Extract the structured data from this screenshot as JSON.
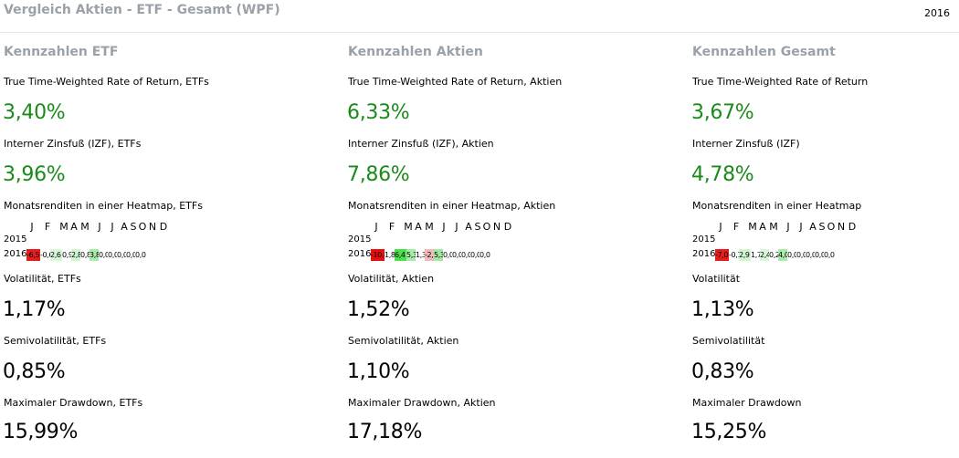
{
  "header": {
    "title": "Vergleich Aktien - ETF - Gesamt (WPF)",
    "year": "2016"
  },
  "month_letters": [
    "J",
    "F",
    "M",
    "A",
    "M",
    "J",
    "J",
    "A",
    "S",
    "O",
    "N",
    "D"
  ],
  "columns": [
    {
      "title": "Kennzahlen ETF",
      "ttwror_label": "True Time-Weighted Rate of Return, ETFs",
      "ttwror_value": "3,40%",
      "izf_label": "Interner Zinsfuß (IZF), ETFs",
      "izf_value": "3,96%",
      "heatmap_label": "Monatsrenditen in einer Heatmap, ETFs",
      "year_prev": "2015",
      "year_cur": "2016",
      "heatmap": [
        {
          "v": "-6,5",
          "c": "#e81c1c"
        },
        {
          "v": "-0,6",
          "c": "#ffffff"
        },
        {
          "v": "2,6",
          "c": "#d8f7d8"
        },
        {
          "v": "0,9",
          "c": "#ffffff"
        },
        {
          "v": "2,8",
          "c": "#d0f5d0"
        },
        {
          "v": "0,8",
          "c": "#ffffff"
        },
        {
          "v": "3,8",
          "c": "#a8eca8"
        },
        {
          "v": "0,0",
          "c": "#ffffff"
        },
        {
          "v": "0,0",
          "c": "#ffffff"
        },
        {
          "v": "0,0",
          "c": "#ffffff"
        },
        {
          "v": "0,0",
          "c": "#ffffff"
        },
        {
          "v": "0,0",
          "c": "#ffffff"
        }
      ],
      "vol_label": "Volatilität, ETFs",
      "vol_value": "1,17%",
      "semivol_label": "Semivolatilität, ETFs",
      "semivol_value": "0,85%",
      "mdd_label": "Maximaler Drawdown, ETFs",
      "mdd_value": "15,99%"
    },
    {
      "title": "Kennzahlen Aktien",
      "ttwror_label": "True Time-Weighted Rate of Return, Aktien",
      "ttwror_value": "6,33%",
      "izf_label": "Interner Zinsfuß (IZF), Aktien",
      "izf_value": "7,86%",
      "heatmap_label": "Monatsrenditen in einer Heatmap, Aktien",
      "year_prev": "2015",
      "year_cur": "2016",
      "heatmap": [
        {
          "v": "-10,4",
          "c": "#e80f0f"
        },
        {
          "v": "1,8",
          "c": "#ffffff"
        },
        {
          "v": "6,4",
          "c": "#4de04d"
        },
        {
          "v": "5,3",
          "c": "#a8eca8"
        },
        {
          "v": "1,3",
          "c": "#ffffff"
        },
        {
          "v": "-2,5",
          "c": "#f4b8b8"
        },
        {
          "v": "5,3",
          "c": "#a0eaa0"
        },
        {
          "v": "0,0",
          "c": "#ffffff"
        },
        {
          "v": "0,0",
          "c": "#ffffff"
        },
        {
          "v": "0,0",
          "c": "#ffffff"
        },
        {
          "v": "0,0",
          "c": "#ffffff"
        },
        {
          "v": "0,0",
          "c": "#ffffff"
        }
      ],
      "vol_label": "Volatilität, Aktien",
      "vol_value": "1,52%",
      "semivol_label": "Semivolatilität, Aktien",
      "semivol_value": "1,10%",
      "mdd_label": "Maximaler Drawdown, Aktien",
      "mdd_value": "17,18%"
    },
    {
      "title": "Kennzahlen Gesamt",
      "ttwror_label": "True Time-Weighted Rate of Return",
      "ttwror_value": "3,67%",
      "izf_label": "Interner Zinsfuß (IZF)",
      "izf_value": "4,78%",
      "heatmap_label": "Monatsrenditen in einer Heatmap",
      "year_prev": "2015",
      "year_cur": "2016",
      "heatmap": [
        {
          "v": "-7,0",
          "c": "#e81c1c"
        },
        {
          "v": "-0,1",
          "c": "#ffffff"
        },
        {
          "v": "2,9",
          "c": "#d0f5d0"
        },
        {
          "v": "1,7",
          "c": "#ffffff"
        },
        {
          "v": "2,4",
          "c": "#d8f7d8"
        },
        {
          "v": "0,2",
          "c": "#ffffff"
        },
        {
          "v": "4,0",
          "c": "#a8eca8"
        },
        {
          "v": "0,0",
          "c": "#ffffff"
        },
        {
          "v": "0,0",
          "c": "#ffffff"
        },
        {
          "v": "0,0",
          "c": "#ffffff"
        },
        {
          "v": "0,0",
          "c": "#ffffff"
        },
        {
          "v": "0,0",
          "c": "#ffffff"
        }
      ],
      "vol_label": "Volatilität",
      "vol_value": "1,13%",
      "semivol_label": "Semivolatilität",
      "semivol_value": "0,83%",
      "mdd_label": "Maximaler Drawdown",
      "mdd_value": "15,25%"
    }
  ]
}
